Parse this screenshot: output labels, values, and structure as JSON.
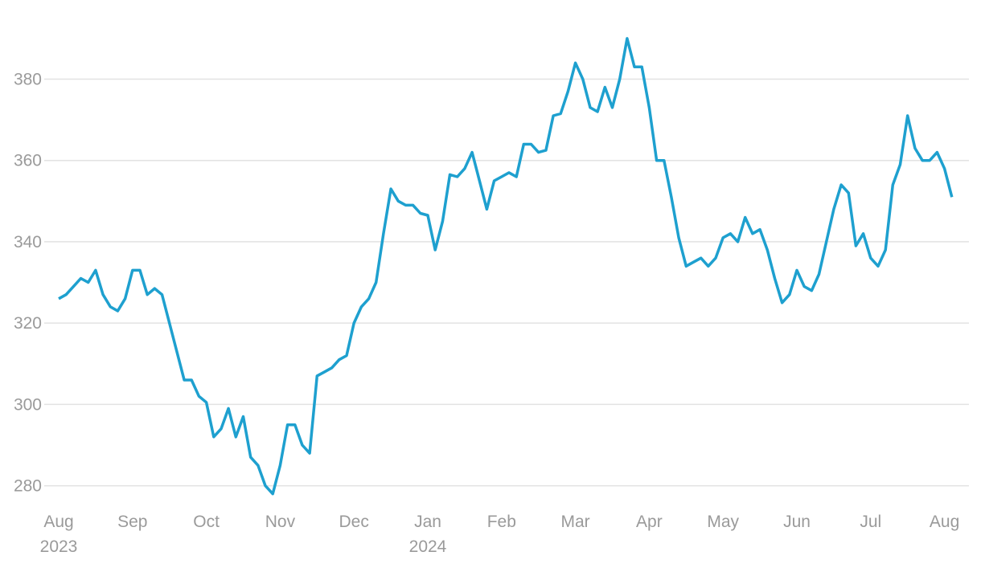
{
  "chart_data": {
    "type": "line",
    "categories": [
      "Aug 2023",
      null,
      null,
      null,
      null,
      null,
      null,
      null,
      null,
      null,
      "Sep",
      null,
      null,
      null,
      null,
      null,
      null,
      null,
      null,
      null,
      "Oct",
      null,
      null,
      null,
      null,
      null,
      null,
      null,
      null,
      null,
      "Nov",
      null,
      null,
      null,
      null,
      null,
      null,
      null,
      null,
      null,
      "Dec",
      null,
      null,
      null,
      null,
      null,
      null,
      null,
      null,
      null,
      "Jan 2024",
      null,
      null,
      null,
      null,
      null,
      null,
      null,
      null,
      null,
      "Feb",
      null,
      null,
      null,
      null,
      null,
      null,
      null,
      null,
      null,
      "Mar",
      null,
      null,
      null,
      null,
      null,
      null,
      null,
      null,
      null,
      "Apr",
      null,
      null,
      null,
      null,
      null,
      null,
      null,
      null,
      null,
      "May",
      null,
      null,
      null,
      null,
      null,
      null,
      null,
      null,
      null,
      "Jun",
      null,
      null,
      null,
      null,
      null,
      null,
      null,
      null,
      null,
      "Jul",
      null,
      null,
      null,
      null,
      null,
      null,
      null,
      null,
      null,
      "Aug",
      null
    ],
    "series": [
      {
        "color": "#1ea0cf",
        "values": [
          326,
          327,
          329,
          331,
          330,
          333,
          327,
          324,
          323,
          326,
          333,
          333,
          327,
          328.5,
          327,
          320,
          313,
          306,
          306,
          302,
          300.5,
          292,
          294,
          299,
          292,
          297,
          287,
          285,
          280,
          278,
          285,
          295,
          295,
          290,
          288,
          307,
          308,
          309,
          311,
          312,
          320,
          324,
          326,
          330,
          342,
          353,
          350,
          349,
          349,
          347,
          346.5,
          338,
          345,
          356.5,
          356,
          358,
          362,
          355,
          348,
          355,
          356,
          357,
          356,
          364,
          364,
          362,
          362.5,
          371,
          371.5,
          377,
          384,
          380,
          373,
          372,
          378,
          373,
          380,
          390,
          383,
          383,
          373,
          360,
          360,
          351,
          341,
          334,
          335,
          336,
          334,
          336,
          341,
          342,
          340,
          346,
          342,
          343,
          338,
          331,
          325,
          327,
          333,
          329,
          328,
          332,
          340,
          348,
          354,
          352,
          339,
          342,
          336,
          334,
          338,
          354,
          359,
          371,
          363,
          360,
          360,
          362,
          358,
          351
        ]
      }
    ],
    "ylim": [
      273,
      396.5
    ],
    "yticks": [
      280,
      300,
      320,
      340,
      360,
      380
    ],
    "grid": true
  }
}
